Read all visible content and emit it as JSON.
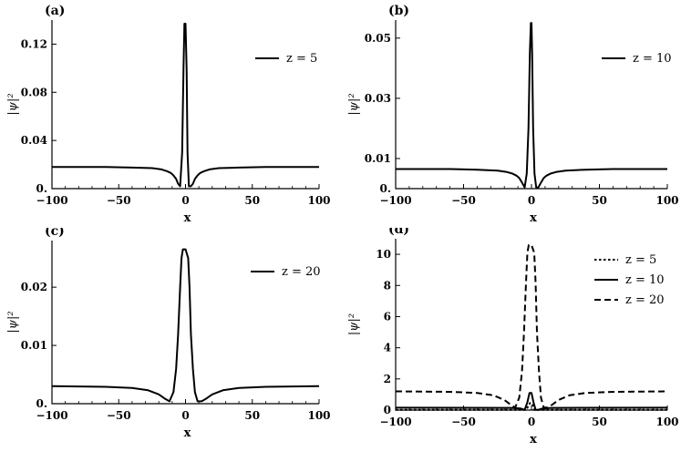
{
  "chart_data": [
    {
      "type": "line",
      "panel_label": "(a)",
      "xlabel": "x",
      "ylabel": "|ψ|²",
      "xlim": [
        -100,
        100
      ],
      "ylim": [
        0,
        0.14
      ],
      "xticks": [
        -100,
        -50,
        0,
        50,
        100
      ],
      "xtick_labels": [
        "−100",
        "−50",
        "0",
        "50",
        "100"
      ],
      "yticks": [
        0,
        0.04,
        0.08,
        0.12
      ],
      "ytick_labels": [
        "0.",
        "0.04",
        "0.08",
        "0.12"
      ],
      "legend_position": "top-right",
      "series": [
        {
          "name": "z = 5",
          "style": "solid",
          "x": [
            -100,
            -60,
            -40,
            -25,
            -18,
            -14,
            -11,
            -9,
            -7,
            -5.5,
            -4,
            -2.5,
            -1.5,
            -0.8,
            0,
            0.8,
            1.5,
            2.5,
            4,
            5.5,
            7,
            9,
            11,
            14,
            18,
            25,
            40,
            60,
            100
          ],
          "y": [
            0.018,
            0.018,
            0.0175,
            0.017,
            0.016,
            0.0145,
            0.013,
            0.011,
            0.008,
            0.004,
            0.002,
            0.03,
            0.1,
            0.137,
            0.137,
            0.1,
            0.03,
            0.002,
            0.002,
            0.004,
            0.008,
            0.011,
            0.013,
            0.0145,
            0.016,
            0.017,
            0.0175,
            0.018,
            0.018
          ]
        }
      ]
    },
    {
      "type": "line",
      "panel_label": "(b)",
      "xlabel": "x",
      "ylabel": "|ψ|²",
      "xlim": [
        -100,
        100
      ],
      "ylim": [
        0,
        0.056
      ],
      "xticks": [
        -100,
        -50,
        0,
        50,
        100
      ],
      "xtick_labels": [
        "−100",
        "−50",
        "0",
        "50",
        "100"
      ],
      "yticks": [
        0,
        0.01,
        0.03,
        0.05
      ],
      "ytick_labels": [
        "0.",
        "0.01",
        "0.03",
        "0.05"
      ],
      "legend_position": "top-right",
      "series": [
        {
          "name": "z = 10",
          "style": "solid",
          "x": [
            -100,
            -60,
            -40,
            -25,
            -18,
            -14,
            -11,
            -9,
            -7,
            -5,
            -3.5,
            -2.2,
            -1.2,
            -0.5,
            0,
            0.5,
            1.2,
            2.2,
            3.5,
            5,
            7,
            9,
            11,
            14,
            18,
            25,
            40,
            60,
            100
          ],
          "y": [
            0.0065,
            0.0065,
            0.0063,
            0.006,
            0.0055,
            0.005,
            0.0043,
            0.0035,
            0.002,
            0.0004,
            0.005,
            0.02,
            0.045,
            0.055,
            0.055,
            0.045,
            0.02,
            0.005,
            0.0004,
            0.0004,
            0.002,
            0.0035,
            0.0043,
            0.005,
            0.0055,
            0.006,
            0.0063,
            0.0065,
            0.0065
          ]
        }
      ]
    },
    {
      "type": "line",
      "panel_label": "(c)",
      "xlabel": "x",
      "ylabel": "|ψ|²",
      "xlim": [
        -100,
        100
      ],
      "ylim": [
        0,
        0.028
      ],
      "xticks": [
        -100,
        -50,
        0,
        50,
        100
      ],
      "xtick_labels": [
        "−100",
        "−50",
        "0",
        "50",
        "100"
      ],
      "yticks": [
        0,
        0.01,
        0.02
      ],
      "ytick_labels": [
        "0.",
        "0.01",
        "0.02"
      ],
      "legend_position": "top-right",
      "series": [
        {
          "name": "z = 20",
          "style": "solid",
          "x": [
            -100,
            -60,
            -40,
            -28,
            -20,
            -15,
            -12,
            -9,
            -7,
            -5.5,
            -4,
            -3,
            -2,
            0,
            2,
            3,
            4,
            5.5,
            7,
            9,
            12,
            15,
            20,
            28,
            40,
            60,
            100
          ],
          "y": [
            0.003,
            0.0029,
            0.0027,
            0.0023,
            0.0016,
            0.0008,
            0.0004,
            0.002,
            0.006,
            0.012,
            0.02,
            0.025,
            0.0265,
            0.0265,
            0.025,
            0.02,
            0.012,
            0.006,
            0.002,
            0.0004,
            0.0004,
            0.0008,
            0.0016,
            0.0023,
            0.0027,
            0.0029,
            0.003
          ]
        }
      ]
    },
    {
      "type": "line",
      "panel_label": "(d)",
      "xlabel": "x",
      "ylabel": "|ψ|²",
      "xlim": [
        -100,
        100
      ],
      "ylim": [
        0,
        11
      ],
      "xticks": [
        -100,
        -50,
        0,
        50,
        100
      ],
      "xtick_labels": [
        "−100",
        "−50",
        "0",
        "50",
        "100"
      ],
      "yticks": [
        0,
        2,
        4,
        6,
        8,
        10
      ],
      "ytick_labels": [
        "0",
        "2",
        "4",
        "6",
        "8",
        "10"
      ],
      "legend_position": "top-right",
      "series": [
        {
          "name": "z = 5",
          "style": "dotted",
          "x": [
            -100,
            -15,
            -8,
            -4,
            -2,
            -1,
            0,
            1,
            2,
            4,
            8,
            15,
            100
          ],
          "y": [
            0.02,
            0.02,
            0.015,
            0.005,
            0.3,
            0.45,
            0.45,
            0.3,
            0.005,
            0.005,
            0.015,
            0.02,
            0.02
          ]
        },
        {
          "name": "z = 10",
          "style": "solid",
          "x": [
            -100,
            -15,
            -8,
            -5,
            -3,
            -1.5,
            0,
            1.5,
            3,
            5,
            8,
            15,
            100
          ],
          "y": [
            0.15,
            0.14,
            0.1,
            0.02,
            0.5,
            1.1,
            1.1,
            0.5,
            0.02,
            0.02,
            0.1,
            0.14,
            0.15
          ]
        },
        {
          "name": "z = 20",
          "style": "dashed",
          "x": [
            -100,
            -60,
            -40,
            -28,
            -20,
            -15,
            -12,
            -9,
            -7,
            -5.5,
            -4,
            -3,
            -2,
            0,
            2,
            3,
            4,
            5.5,
            7,
            9,
            12,
            15,
            20,
            28,
            40,
            60,
            100
          ],
          "y": [
            1.2,
            1.17,
            1.1,
            0.95,
            0.65,
            0.33,
            0.16,
            0.8,
            2.5,
            5,
            8.2,
            10.1,
            10.6,
            10.6,
            10.1,
            8.2,
            5,
            2.5,
            0.8,
            0.16,
            0.16,
            0.33,
            0.65,
            0.95,
            1.1,
            1.17,
            1.2
          ]
        }
      ]
    }
  ]
}
